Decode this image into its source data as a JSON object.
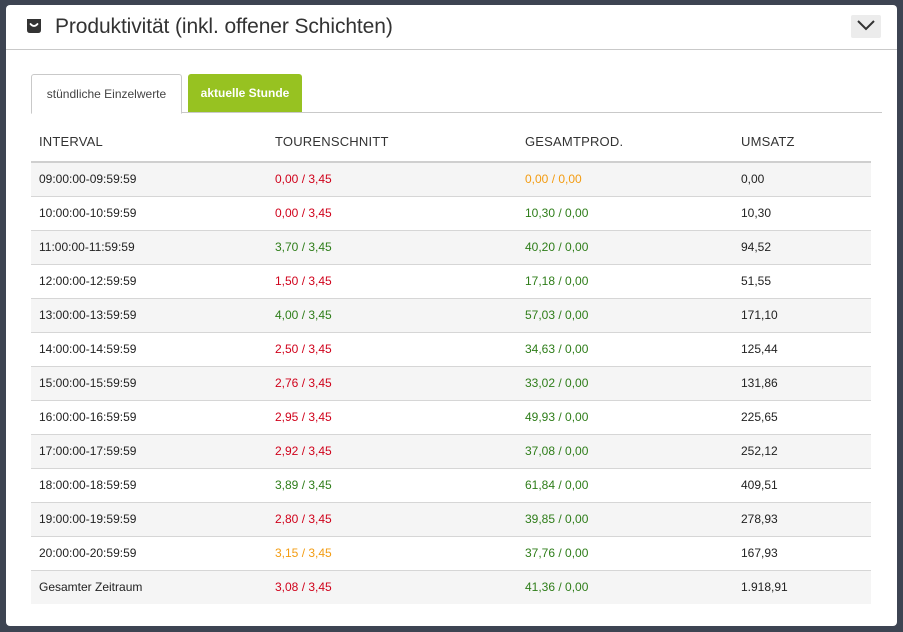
{
  "header": {
    "title": "Produktivität (inkl. offener Schichten)",
    "icon": "bag-icon"
  },
  "tabs": [
    {
      "label": "stündliche Einzelwerte",
      "active": true
    },
    {
      "label": "aktuelle Stunde",
      "active": false
    }
  ],
  "colors": {
    "accent_green": "#97c221",
    "value_red": "#d0021b",
    "value_green": "#2e7d19",
    "value_orange": "#f39c12"
  },
  "table": {
    "columns": [
      "INTERVAL",
      "TOURENSCHNITT",
      "GESAMTPROD.",
      "UMSATZ"
    ],
    "rows": [
      {
        "interval": "09:00:00-09:59:59",
        "tour": "0,00 / 3,45",
        "tour_status": "red",
        "prod": "0,00 / 0,00",
        "prod_status": "orange",
        "umsatz": "0,00"
      },
      {
        "interval": "10:00:00-10:59:59",
        "tour": "0,00 / 3,45",
        "tour_status": "red",
        "prod": "10,30 / 0,00",
        "prod_status": "green",
        "umsatz": "10,30"
      },
      {
        "interval": "11:00:00-11:59:59",
        "tour": "3,70 / 3,45",
        "tour_status": "green",
        "prod": "40,20 / 0,00",
        "prod_status": "green",
        "umsatz": "94,52"
      },
      {
        "interval": "12:00:00-12:59:59",
        "tour": "1,50 / 3,45",
        "tour_status": "red",
        "prod": "17,18 / 0,00",
        "prod_status": "green",
        "umsatz": "51,55"
      },
      {
        "interval": "13:00:00-13:59:59",
        "tour": "4,00 / 3,45",
        "tour_status": "green",
        "prod": "57,03 / 0,00",
        "prod_status": "green",
        "umsatz": "171,10"
      },
      {
        "interval": "14:00:00-14:59:59",
        "tour": "2,50 / 3,45",
        "tour_status": "red",
        "prod": "34,63 / 0,00",
        "prod_status": "green",
        "umsatz": "125,44"
      },
      {
        "interval": "15:00:00-15:59:59",
        "tour": "2,76 / 3,45",
        "tour_status": "red",
        "prod": "33,02 / 0,00",
        "prod_status": "green",
        "umsatz": "131,86"
      },
      {
        "interval": "16:00:00-16:59:59",
        "tour": "2,95 / 3,45",
        "tour_status": "red",
        "prod": "49,93 / 0,00",
        "prod_status": "green",
        "umsatz": "225,65"
      },
      {
        "interval": "17:00:00-17:59:59",
        "tour": "2,92 / 3,45",
        "tour_status": "red",
        "prod": "37,08 / 0,00",
        "prod_status": "green",
        "umsatz": "252,12"
      },
      {
        "interval": "18:00:00-18:59:59",
        "tour": "3,89 / 3,45",
        "tour_status": "green",
        "prod": "61,84 / 0,00",
        "prod_status": "green",
        "umsatz": "409,51"
      },
      {
        "interval": "19:00:00-19:59:59",
        "tour": "2,80 / 3,45",
        "tour_status": "red",
        "prod": "39,85 / 0,00",
        "prod_status": "green",
        "umsatz": "278,93"
      },
      {
        "interval": "20:00:00-20:59:59",
        "tour": "3,15 / 3,45",
        "tour_status": "orange",
        "prod": "37,76 / 0,00",
        "prod_status": "green",
        "umsatz": "167,93"
      },
      {
        "interval": "Gesamter Zeitraum",
        "tour": "3,08 / 3,45",
        "tour_status": "red",
        "prod": "41,36 / 0,00",
        "prod_status": "green",
        "umsatz": "1.918,91"
      }
    ]
  }
}
